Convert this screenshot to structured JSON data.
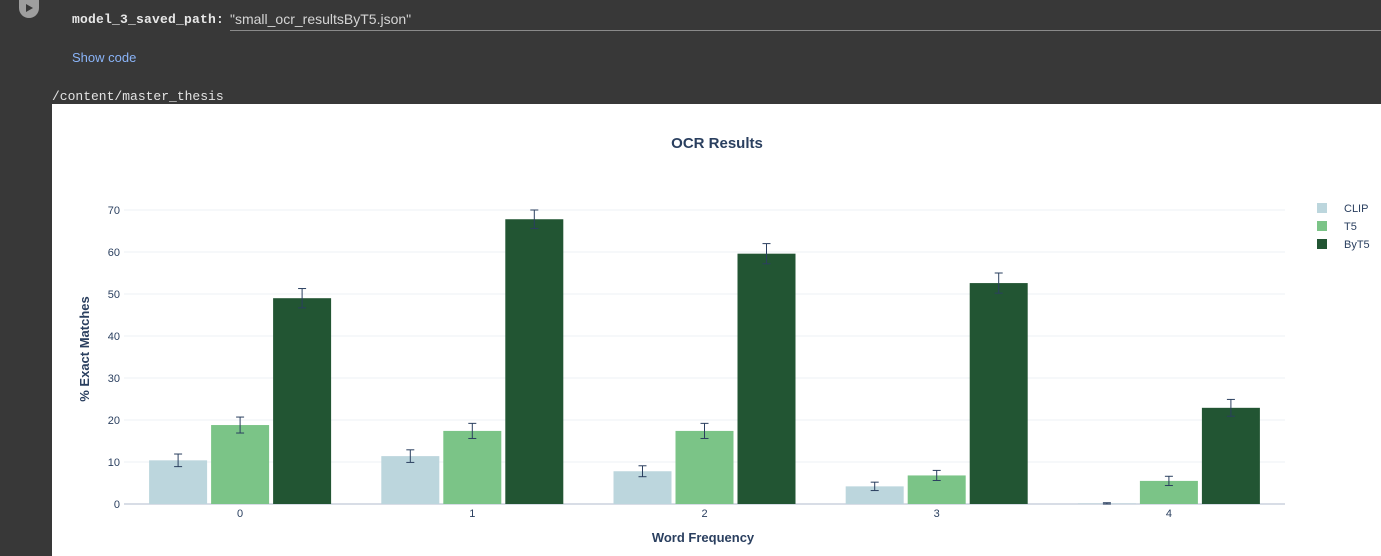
{
  "cell": {
    "param_name": "model_3_saved_path:",
    "param_value": "\"small_ocr_resultsByT5.json\"",
    "show_code_label": "Show code",
    "output_path": "/content/master_thesis"
  },
  "chart_data": {
    "type": "bar",
    "title": "OCR Results",
    "xlabel": "Word Frequency",
    "ylabel": "% Exact Matches",
    "categories": [
      "0",
      "1",
      "2",
      "3",
      "4"
    ],
    "ylim": [
      0,
      75
    ],
    "yticks": [
      0,
      10,
      20,
      30,
      40,
      50,
      60,
      70
    ],
    "grid": true,
    "legend_position": "top-right",
    "series": [
      {
        "name": "CLIP",
        "color": "#bcd6dd",
        "values": [
          10.4,
          11.4,
          7.8,
          4.2,
          0.1
        ],
        "errors": [
          1.5,
          1.5,
          1.3,
          1.0,
          0.2
        ]
      },
      {
        "name": "T5",
        "color": "#7bc487",
        "values": [
          18.8,
          17.4,
          17.4,
          6.8,
          5.5
        ],
        "errors": [
          1.9,
          1.8,
          1.8,
          1.2,
          1.1
        ]
      },
      {
        "name": "ByT5",
        "color": "#225533",
        "values": [
          49.0,
          67.8,
          59.6,
          52.6,
          22.9
        ],
        "errors": [
          2.3,
          2.2,
          2.4,
          2.4,
          2.0
        ]
      }
    ]
  }
}
